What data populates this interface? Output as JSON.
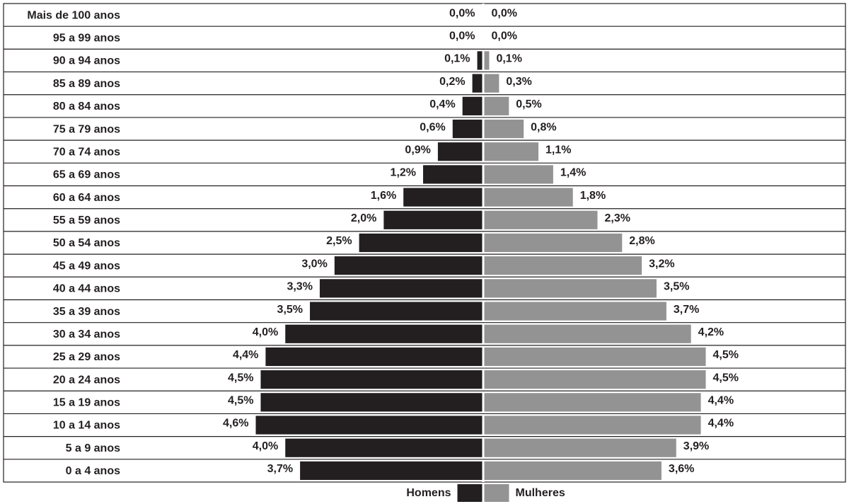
{
  "chart_data": {
    "type": "pyramid",
    "categories": [
      "Mais de 100 anos",
      "95 a 99 anos",
      "90 a 94 anos",
      "85 a 89 anos",
      "80 a 84 anos",
      "75 a 79 anos",
      "70 a 74 anos",
      "65 a 69 anos",
      "60 a 64 anos",
      "55 a 59 anos",
      "50 a 54 anos",
      "45 a 49 anos",
      "40 a 44 anos",
      "35 a 39 anos",
      "30 a 34 anos",
      "25 a 29 anos",
      "20 a 24 anos",
      "15 a 19 anos",
      "10 a 14 anos",
      "5 a 9 anos",
      "0 a 4 anos"
    ],
    "series": [
      {
        "name": "Homens",
        "color": "#231f20",
        "values": [
          0.0,
          0.0,
          0.1,
          0.2,
          0.4,
          0.6,
          0.9,
          1.2,
          1.6,
          2.0,
          2.5,
          3.0,
          3.3,
          3.5,
          4.0,
          4.4,
          4.5,
          4.5,
          4.6,
          4.0,
          3.7
        ],
        "value_labels": [
          "0,0%",
          "0,0%",
          "0,1%",
          "0,2%",
          "0,4%",
          "0,6%",
          "0,9%",
          "1,2%",
          "1,6%",
          "2,0%",
          "2,5%",
          "3,0%",
          "3,3%",
          "3,5%",
          "4,0%",
          "4,4%",
          "4,5%",
          "4,5%",
          "4,6%",
          "4,0%",
          "3,7%"
        ]
      },
      {
        "name": "Mulheres",
        "color": "#939393",
        "values": [
          0.0,
          0.0,
          0.1,
          0.3,
          0.5,
          0.8,
          1.1,
          1.4,
          1.8,
          2.3,
          2.8,
          3.2,
          3.5,
          3.7,
          4.2,
          4.5,
          4.5,
          4.4,
          4.4,
          3.9,
          3.6
        ],
        "value_labels": [
          "0,0%",
          "0,0%",
          "0,1%",
          "0,3%",
          "0,5%",
          "0,8%",
          "1,1%",
          "1,4%",
          "1,8%",
          "2,3%",
          "2,8%",
          "3,2%",
          "3,5%",
          "3,7%",
          "4,2%",
          "4,5%",
          "4,5%",
          "4,4%",
          "4,4%",
          "3,9%",
          "3,6%"
        ]
      }
    ]
  }
}
